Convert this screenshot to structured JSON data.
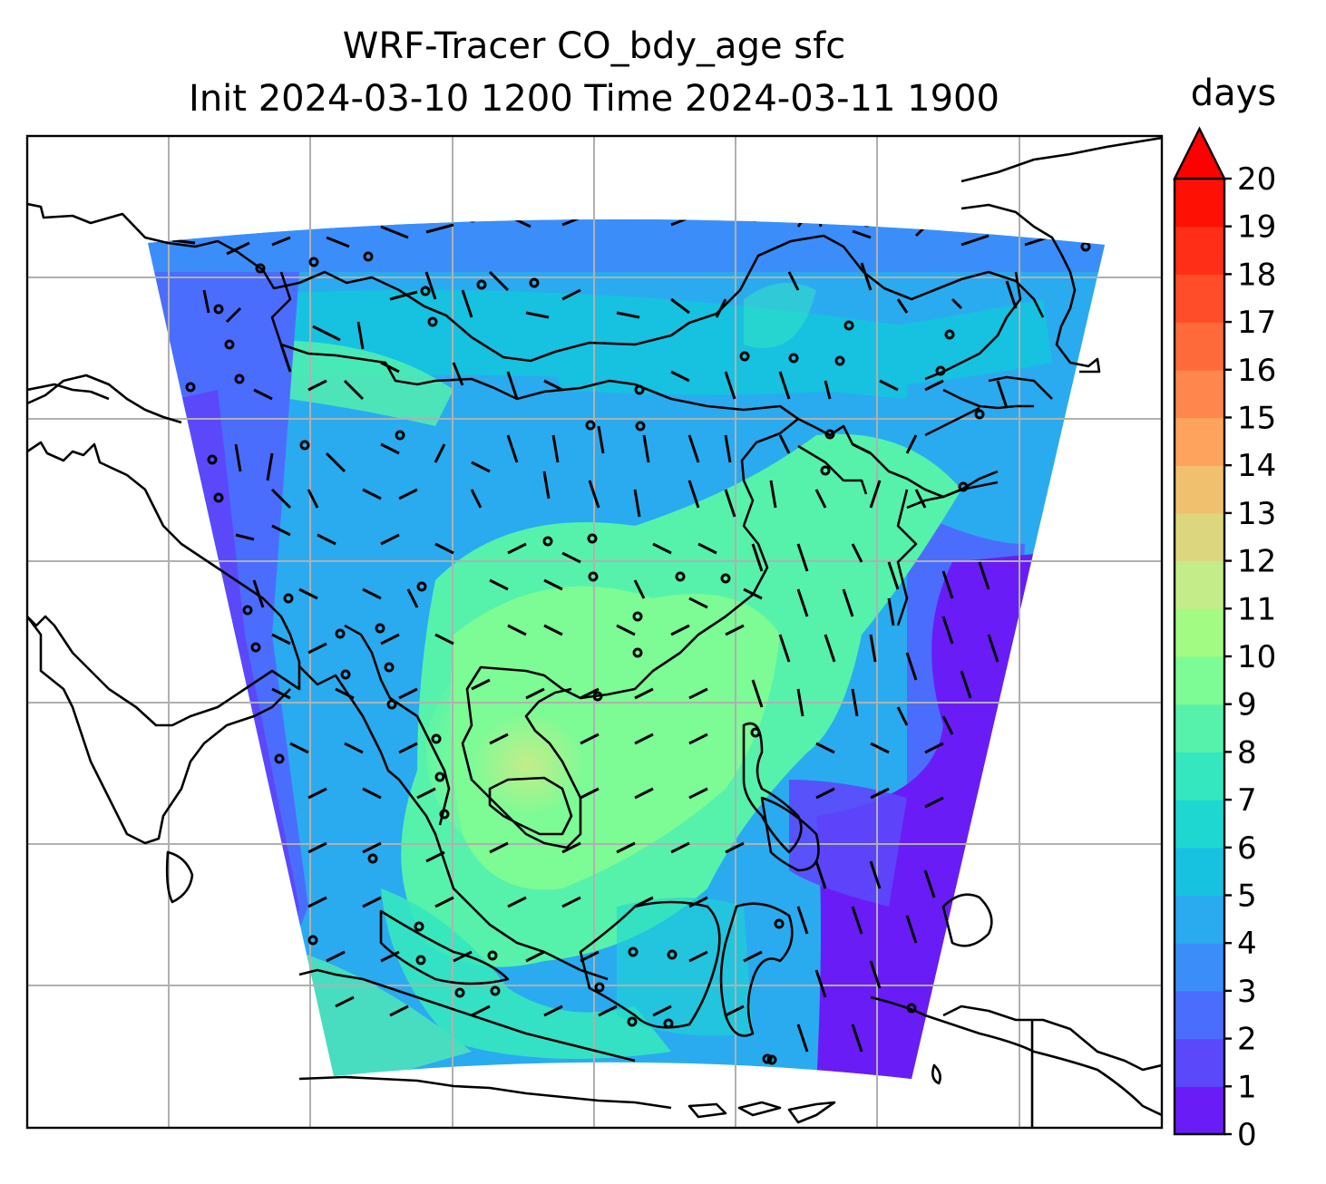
{
  "title": {
    "line1": "WRF-Tracer CO_bdy_age sfc",
    "line2": "Init 2024-03-10 1200 Time 2024-03-11 1900"
  },
  "colorbar": {
    "units": "days",
    "ticks": [
      "0",
      "1",
      "2",
      "3",
      "4",
      "5",
      "6",
      "7",
      "8",
      "9",
      "10",
      "11",
      "12",
      "13",
      "14",
      "15",
      "16",
      "17",
      "18",
      "19",
      "20"
    ],
    "colors": [
      "#6a1cf6",
      "#5c48fb",
      "#4b6dfd",
      "#3b8ef9",
      "#2aabef",
      "#17c2e1",
      "#1ed7d1",
      "#35e7bf",
      "#56f2ac",
      "#7dfb95",
      "#a2fb83",
      "#c4ed8a",
      "#dcd77e",
      "#f0c06e",
      "#fda35e",
      "#ff864d",
      "#ff6a3b",
      "#ff4c29",
      "#ff2f17",
      "#ff1005"
    ],
    "extend": "max",
    "extend_color": "#ff0000"
  },
  "map": {
    "gridlines": true,
    "field": "CO_bdy_age",
    "overlay": "wind barbs",
    "coastlines": true
  }
}
